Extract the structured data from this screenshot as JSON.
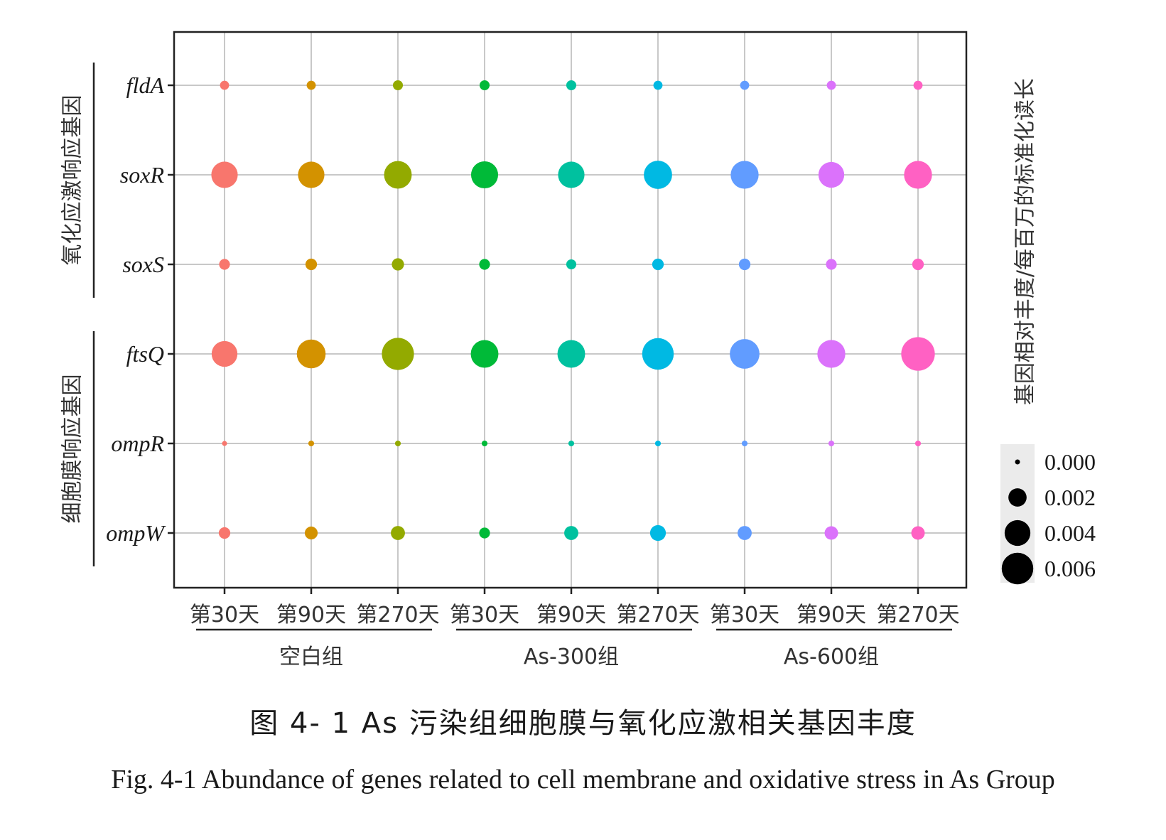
{
  "chart_data": {
    "type": "bubble",
    "genes": [
      "fldA",
      "soxR",
      "soxS",
      "ftsQ",
      "ompR",
      "ompW"
    ],
    "gene_groups": [
      {
        "label": "氧化应激响应基因",
        "genes": [
          "fldA",
          "soxR",
          "soxS"
        ]
      },
      {
        "label": "细胞膜响应基因",
        "genes": [
          "ftsQ",
          "ompR",
          "ompW"
        ]
      }
    ],
    "x_labels": [
      "第30天",
      "第90天",
      "第270天",
      "第30天",
      "第90天",
      "第270天",
      "第30天",
      "第90天",
      "第270天"
    ],
    "x_groups": [
      {
        "label": "空白组",
        "span": [
          0,
          2
        ]
      },
      {
        "label": "As-300组",
        "span": [
          3,
          5
        ]
      },
      {
        "label": "As-600组",
        "span": [
          6,
          8
        ]
      }
    ],
    "colors": [
      "#F8766D",
      "#D39200",
      "#93AA00",
      "#00BA38",
      "#00C19F",
      "#00B9E3",
      "#619CFF",
      "#DB72FB",
      "#FF61C3"
    ],
    "values": {
      "fldA": [
        0.0005,
        0.0005,
        0.0006,
        0.0006,
        0.0006,
        0.0005,
        0.0005,
        0.0005,
        0.0005
      ],
      "soxR": [
        0.0042,
        0.0042,
        0.0046,
        0.0044,
        0.0042,
        0.0048,
        0.0047,
        0.004,
        0.0047
      ],
      "soxS": [
        0.0007,
        0.0008,
        0.0009,
        0.0007,
        0.0006,
        0.0008,
        0.0008,
        0.0007,
        0.0008
      ],
      "ftsQ": [
        0.004,
        0.005,
        0.0062,
        0.0046,
        0.0046,
        0.006,
        0.0053,
        0.0047,
        0.0068
      ],
      "ompR": [
        0.0001,
        0.0002,
        0.0002,
        0.0002,
        0.0002,
        0.0002,
        0.0002,
        0.0002,
        0.0002
      ],
      "ompW": [
        0.0008,
        0.001,
        0.0012,
        0.0007,
        0.0012,
        0.0015,
        0.0012,
        0.0011,
        0.0011
      ]
    },
    "size_legend": {
      "title": "基因相对丰度/每百万的标准化读长",
      "values": [
        0.0,
        0.002,
        0.004,
        0.006
      ],
      "labels": [
        "0.000",
        "0.002",
        "0.004",
        "0.006"
      ]
    },
    "grid": true
  },
  "caption_zh": "图 4- 1 As 污染组细胞膜与氧化应激相关基因丰度",
  "caption_en": "Fig. 4-1 Abundance of genes related to cell membrane and oxidative stress in As Group"
}
